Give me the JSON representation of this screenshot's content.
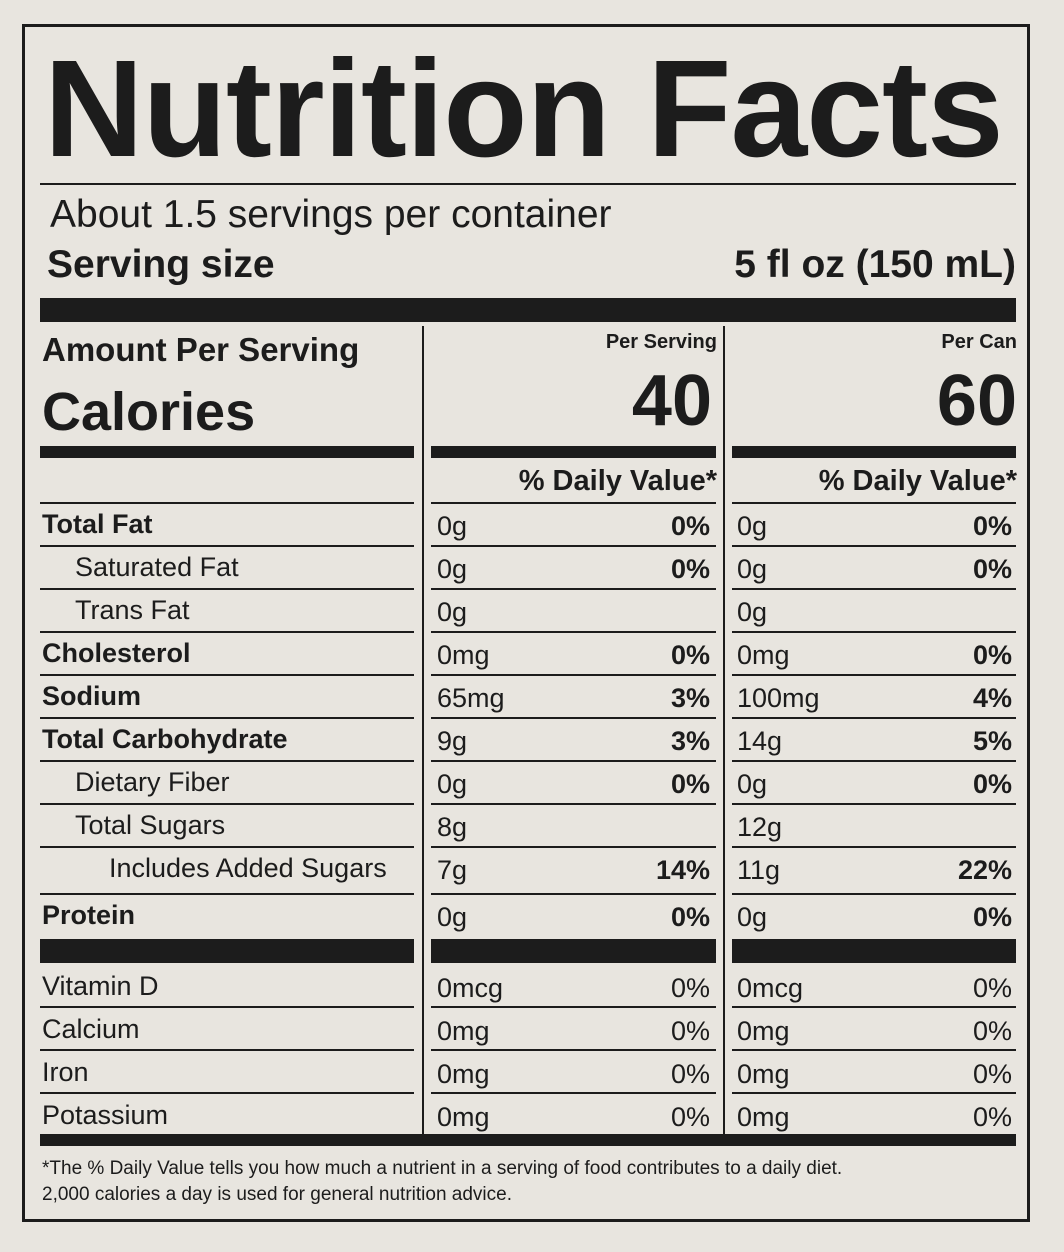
{
  "title": "Nutrition Facts",
  "servings": {
    "per_container": "About 1.5 servings per container",
    "size_label": "Serving size",
    "size_value": "5 fl oz (150 mL)"
  },
  "header": {
    "amount_per_serving": "Amount Per Serving",
    "calories_label": "Calories",
    "col1_title": "Per Serving",
    "col2_title": "Per Can",
    "col1_calories": "40",
    "col2_calories": "60",
    "daily_value_header": "% Daily Value*"
  },
  "nutrients": [
    {
      "name": "Total Fat",
      "bold": true,
      "indent": 0,
      "s_amt": "0g",
      "s_dv": "0%",
      "c_amt": "0g",
      "c_dv": "0%"
    },
    {
      "name": "Saturated Fat",
      "bold": false,
      "indent": 1,
      "s_amt": "0g",
      "s_dv": "0%",
      "c_amt": "0g",
      "c_dv": "0%"
    },
    {
      "name": "Trans Fat",
      "bold": false,
      "indent": 1,
      "s_amt": "0g",
      "s_dv": "",
      "c_amt": "0g",
      "c_dv": ""
    },
    {
      "name": "Cholesterol",
      "bold": true,
      "indent": 0,
      "s_amt": "0mg",
      "s_dv": "0%",
      "c_amt": "0mg",
      "c_dv": "0%"
    },
    {
      "name": "Sodium",
      "bold": true,
      "indent": 0,
      "s_amt": "65mg",
      "s_dv": "3%",
      "c_amt": "100mg",
      "c_dv": "4%"
    },
    {
      "name": "Total Carbohydrate",
      "bold": true,
      "indent": 0,
      "s_amt": "9g",
      "s_dv": "3%",
      "c_amt": "14g",
      "c_dv": "5%"
    },
    {
      "name": "Dietary Fiber",
      "bold": false,
      "indent": 1,
      "s_amt": "0g",
      "s_dv": "0%",
      "c_amt": "0g",
      "c_dv": "0%"
    },
    {
      "name": "Total Sugars",
      "bold": false,
      "indent": 1,
      "s_amt": "8g",
      "s_dv": "",
      "c_amt": "12g",
      "c_dv": ""
    },
    {
      "name": "Includes Added Sugars",
      "bold": false,
      "indent": 2,
      "s_amt": "7g",
      "s_dv": "14%",
      "c_amt": "11g",
      "c_dv": "22%"
    },
    {
      "name": "Protein",
      "bold": true,
      "indent": 0,
      "s_amt": "0g",
      "s_dv": "0%",
      "c_amt": "0g",
      "c_dv": "0%"
    }
  ],
  "vitamins": [
    {
      "name": "Vitamin D",
      "s_amt": "0mcg",
      "s_dv": "0%",
      "c_amt": "0mcg",
      "c_dv": "0%"
    },
    {
      "name": "Calcium",
      "s_amt": "0mg",
      "s_dv": "0%",
      "c_amt": "0mg",
      "c_dv": "0%"
    },
    {
      "name": "Iron",
      "s_amt": "0mg",
      "s_dv": "0%",
      "c_amt": "0mg",
      "c_dv": "0%"
    },
    {
      "name": "Potassium",
      "s_amt": "0mg",
      "s_dv": "0%",
      "c_amt": "0mg",
      "c_dv": "0%"
    }
  ],
  "footnote": {
    "line1": "*The % Daily Value tells you how much a nutrient in a serving of food contributes to a daily diet.",
    "line2": "2,000 calories a day is used for general nutrition advice."
  }
}
